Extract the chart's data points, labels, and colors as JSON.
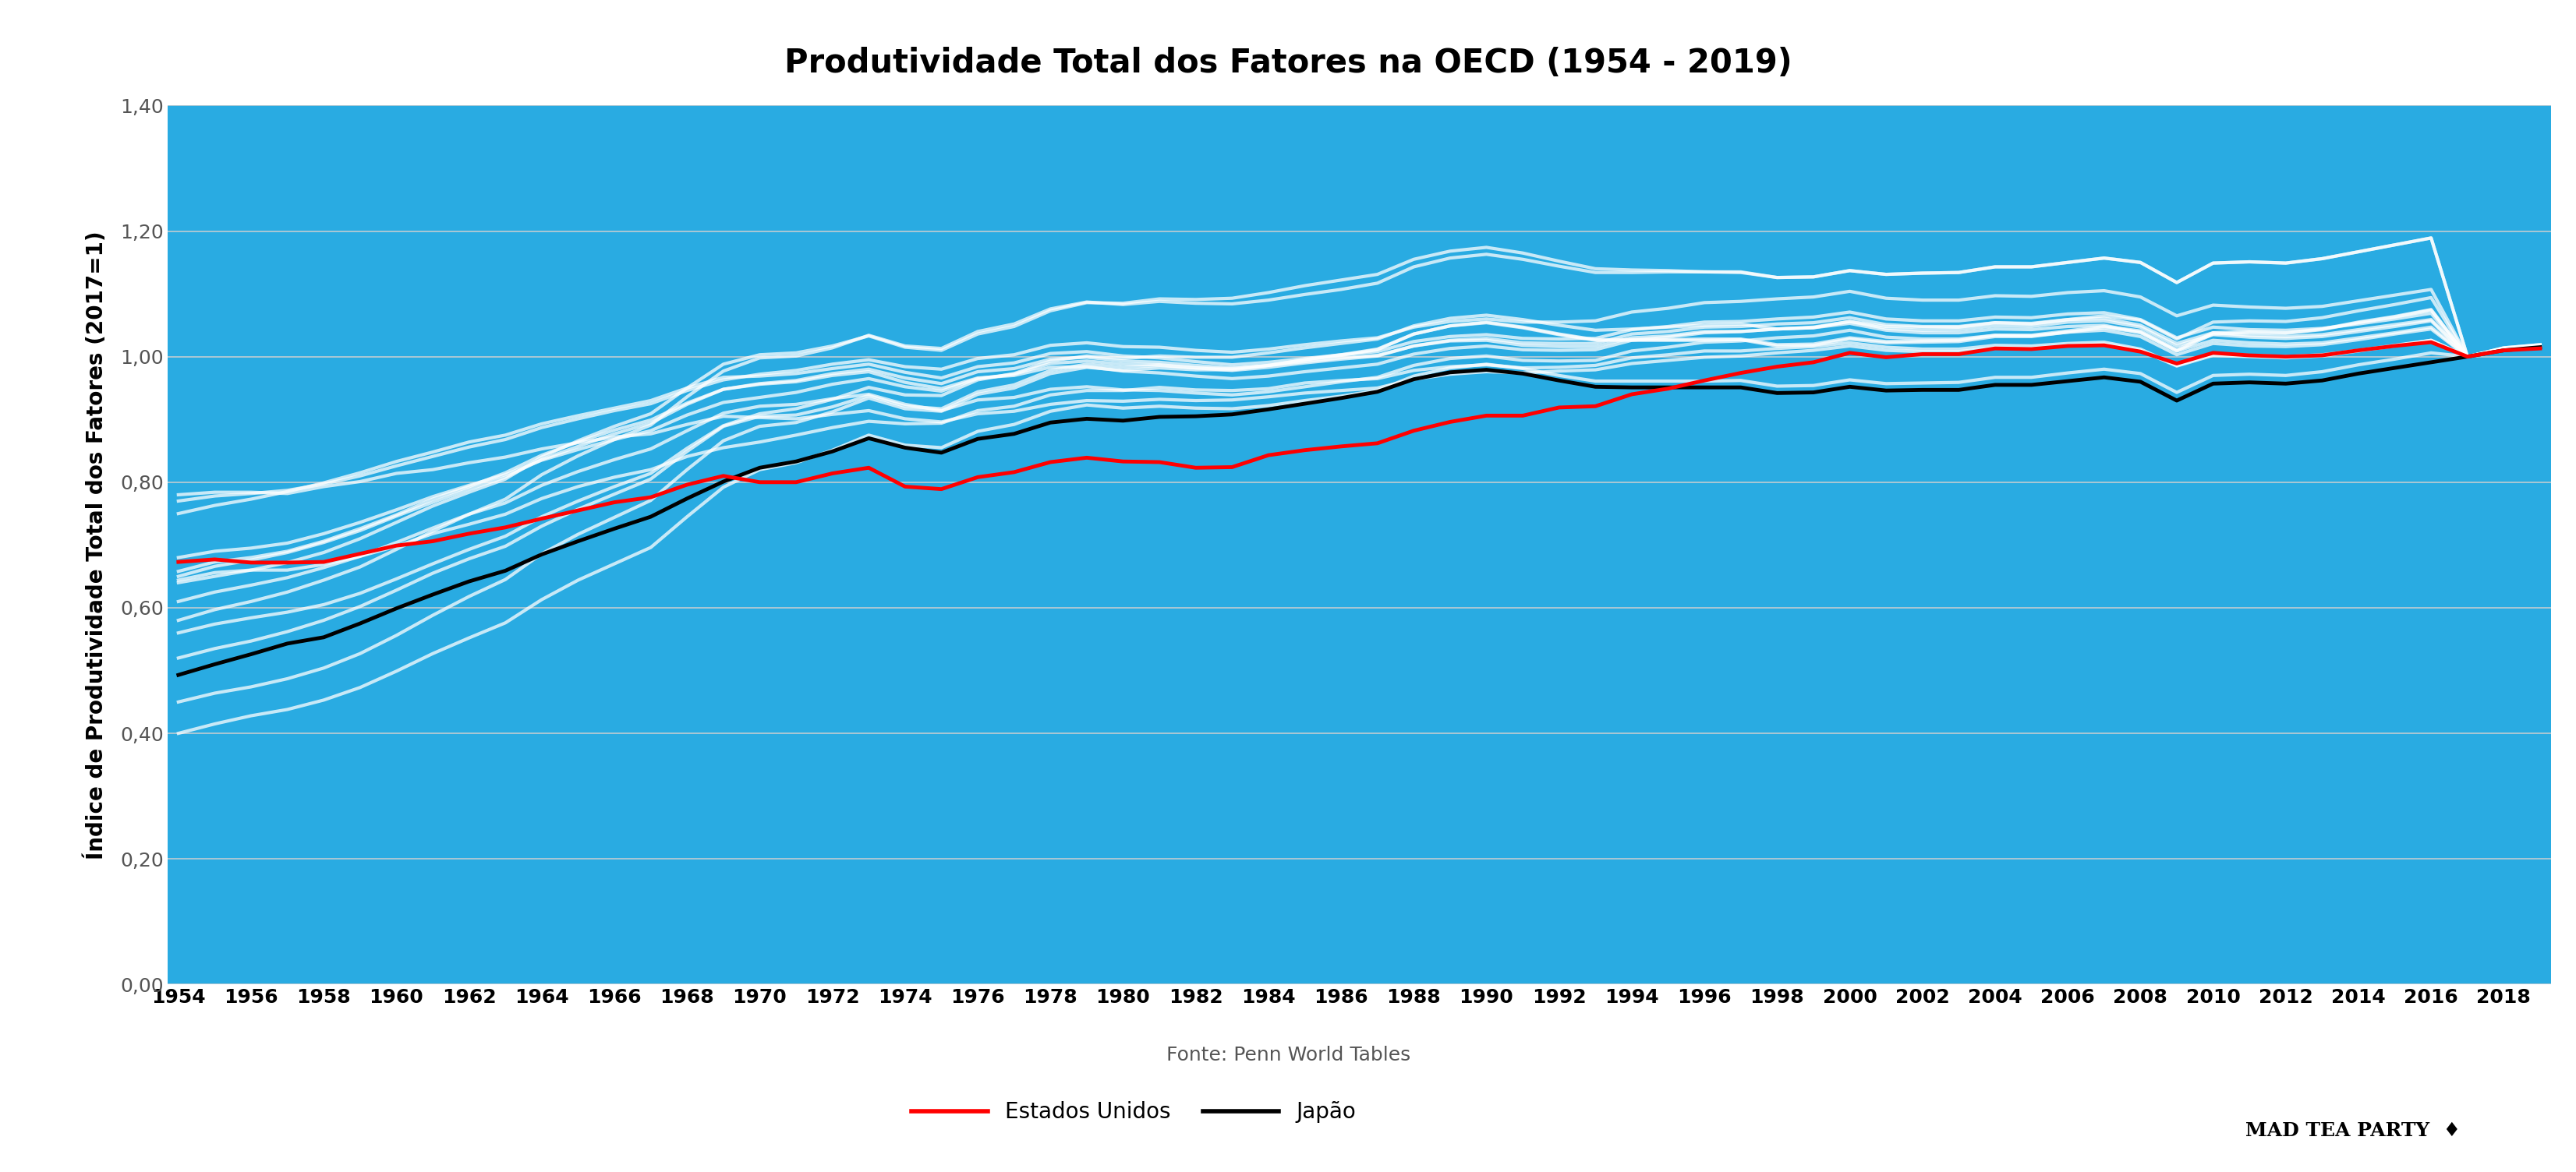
{
  "title": "Produtividade Total dos Fatores na OECD (1954 - 2019)",
  "ylabel": "Índice de Produtividade Total dos Fatores (2017=1)",
  "xlabel_source": "Fonte: Penn World Tables",
  "background_color": "#29ABE2",
  "fig_bg_color": "#FFFFFF",
  "years": [
    1954,
    1955,
    1956,
    1957,
    1958,
    1959,
    1960,
    1961,
    1962,
    1963,
    1964,
    1965,
    1966,
    1967,
    1968,
    1969,
    1970,
    1971,
    1972,
    1973,
    1974,
    1975,
    1976,
    1977,
    1978,
    1979,
    1980,
    1981,
    1982,
    1983,
    1984,
    1985,
    1986,
    1987,
    1988,
    1989,
    1990,
    1991,
    1992,
    1993,
    1994,
    1995,
    1996,
    1997,
    1998,
    1999,
    2000,
    2001,
    2002,
    2003,
    2004,
    2005,
    2006,
    2007,
    2008,
    2009,
    2010,
    2011,
    2012,
    2013,
    2014,
    2015,
    2016,
    2017,
    2018,
    2019
  ],
  "ylim": [
    0.0,
    1.4
  ],
  "yticks": [
    0.0,
    0.2,
    0.4,
    0.6,
    0.8,
    1.0,
    1.2,
    1.4
  ],
  "usa_color": "#FF0000",
  "japan_color": "#000000",
  "other_color": "#FFFFFF",
  "other_alpha": 0.75,
  "usa_linewidth": 3.5,
  "japan_linewidth": 3.5,
  "other_linewidth": 3.0,
  "legend_us": "Estados Unidos",
  "legend_japan": "Japão",
  "title_fontsize": 30,
  "axis_fontsize": 20,
  "tick_fontsize": 18,
  "source_fontsize": 18,
  "legend_fontsize": 20,
  "grid_color": "#D0D0D0",
  "tick_color": "#555555",
  "usa_data": [
    0.673,
    0.677,
    0.672,
    0.672,
    0.673,
    0.686,
    0.699,
    0.706,
    0.718,
    0.728,
    0.742,
    0.755,
    0.768,
    0.776,
    0.796,
    0.81,
    0.8,
    0.8,
    0.814,
    0.823,
    0.793,
    0.789,
    0.808,
    0.816,
    0.832,
    0.839,
    0.833,
    0.832,
    0.823,
    0.824,
    0.843,
    0.851,
    0.857,
    0.862,
    0.882,
    0.896,
    0.906,
    0.906,
    0.919,
    0.921,
    0.94,
    0.949,
    0.962,
    0.974,
    0.984,
    0.991,
    1.006,
    0.999,
    1.004,
    1.004,
    1.013,
    1.012,
    1.017,
    1.018,
    1.008,
    0.989,
    1.006,
    1.002,
    1.0,
    1.002,
    1.01,
    1.017,
    1.023,
    1.0,
    1.01,
    1.013
  ],
  "japan_data": [
    0.493,
    0.51,
    0.526,
    0.543,
    0.553,
    0.575,
    0.599,
    0.621,
    0.642,
    0.659,
    0.685,
    0.706,
    0.726,
    0.745,
    0.774,
    0.801,
    0.823,
    0.833,
    0.849,
    0.87,
    0.855,
    0.847,
    0.869,
    0.877,
    0.895,
    0.901,
    0.898,
    0.904,
    0.905,
    0.908,
    0.916,
    0.925,
    0.934,
    0.944,
    0.964,
    0.975,
    0.979,
    0.973,
    0.962,
    0.952,
    0.951,
    0.951,
    0.951,
    0.951,
    0.942,
    0.943,
    0.952,
    0.946,
    0.947,
    0.947,
    0.955,
    0.955,
    0.961,
    0.967,
    0.96,
    0.93,
    0.957,
    0.959,
    0.957,
    0.962,
    0.973,
    0.982,
    0.991,
    1.0,
    1.01,
    1.015
  ],
  "other_countries": [
    [
      0.644,
      0.656,
      0.66,
      0.66,
      0.669,
      0.682,
      0.698,
      0.718,
      0.733,
      0.749,
      0.774,
      0.793,
      0.808,
      0.82,
      0.841,
      0.855,
      0.864,
      0.875,
      0.887,
      0.897,
      0.893,
      0.894,
      0.914,
      0.921,
      0.939,
      0.946,
      0.946,
      0.951,
      0.947,
      0.946,
      0.949,
      0.958,
      0.962,
      0.965,
      0.978,
      0.984,
      0.987,
      0.982,
      0.983,
      0.986,
      0.998,
      1.003,
      1.009,
      1.009,
      1.013,
      1.016,
      1.022,
      1.015,
      1.012,
      1.012,
      1.018,
      1.017,
      1.021,
      1.023,
      1.012,
      0.986,
      1.004,
      1.002,
      1.0,
      1.003,
      1.01,
      1.018,
      1.026,
      1.0,
      1.01,
      1.014
    ],
    [
      0.658,
      0.673,
      0.68,
      0.69,
      0.706,
      0.726,
      0.748,
      0.773,
      0.793,
      0.815,
      0.843,
      0.864,
      0.883,
      0.899,
      0.926,
      0.948,
      0.957,
      0.962,
      0.973,
      0.98,
      0.966,
      0.957,
      0.976,
      0.981,
      0.996,
      0.999,
      0.993,
      0.991,
      0.986,
      0.982,
      0.986,
      0.992,
      0.998,
      1.002,
      1.017,
      1.025,
      1.026,
      1.018,
      1.016,
      1.016,
      1.03,
      1.033,
      1.04,
      1.04,
      1.044,
      1.046,
      1.053,
      1.042,
      1.038,
      1.038,
      1.044,
      1.043,
      1.048,
      1.05,
      1.038,
      1.009,
      1.026,
      1.022,
      1.02,
      1.022,
      1.03,
      1.038,
      1.047,
      1.0,
      1.01,
      1.015
    ],
    [
      0.78,
      0.784,
      0.784,
      0.782,
      0.793,
      0.801,
      0.814,
      0.82,
      0.831,
      0.84,
      0.853,
      0.863,
      0.872,
      0.877,
      0.892,
      0.905,
      0.903,
      0.901,
      0.908,
      0.914,
      0.901,
      0.896,
      0.909,
      0.913,
      0.924,
      0.93,
      0.929,
      0.932,
      0.93,
      0.931,
      0.936,
      0.942,
      0.946,
      0.95,
      0.964,
      0.972,
      0.976,
      0.974,
      0.977,
      0.979,
      0.989,
      0.994,
      0.999,
      1.001,
      1.006,
      1.01,
      1.017,
      1.01,
      1.008,
      1.008,
      1.014,
      1.013,
      1.018,
      1.02,
      1.01,
      0.985,
      1.002,
      1.0,
      0.998,
      1.001,
      1.009,
      1.017,
      1.026,
      1.0,
      1.01,
      1.014
    ],
    [
      0.75,
      0.763,
      0.773,
      0.785,
      0.799,
      0.815,
      0.833,
      0.848,
      0.864,
      0.875,
      0.893,
      0.906,
      0.918,
      0.93,
      0.95,
      0.967,
      0.969,
      0.973,
      0.981,
      0.988,
      0.975,
      0.966,
      0.984,
      0.99,
      1.005,
      1.008,
      1.001,
      0.998,
      0.992,
      0.987,
      0.991,
      0.997,
      1.003,
      1.008,
      1.024,
      1.032,
      1.035,
      1.029,
      1.028,
      1.029,
      1.043,
      1.048,
      1.055,
      1.056,
      1.06,
      1.063,
      1.071,
      1.06,
      1.057,
      1.057,
      1.063,
      1.062,
      1.068,
      1.07,
      1.059,
      1.03,
      1.047,
      1.043,
      1.042,
      1.045,
      1.052,
      1.06,
      1.069,
      1.0,
      1.01,
      1.015
    ],
    [
      0.68,
      0.69,
      0.695,
      0.703,
      0.718,
      0.736,
      0.756,
      0.777,
      0.795,
      0.812,
      0.835,
      0.852,
      0.868,
      0.882,
      0.907,
      0.927,
      0.935,
      0.943,
      0.956,
      0.965,
      0.952,
      0.945,
      0.965,
      0.972,
      0.989,
      0.993,
      0.988,
      0.987,
      0.982,
      0.978,
      0.983,
      0.99,
      0.996,
      1.001,
      1.017,
      1.026,
      1.029,
      1.022,
      1.021,
      1.021,
      1.036,
      1.04,
      1.047,
      1.048,
      1.052,
      1.054,
      1.062,
      1.051,
      1.048,
      1.048,
      1.054,
      1.053,
      1.059,
      1.061,
      1.05,
      1.021,
      1.038,
      1.034,
      1.032,
      1.035,
      1.043,
      1.051,
      1.059,
      1.0,
      1.01,
      1.015
    ],
    [
      0.4,
      0.415,
      0.428,
      0.438,
      0.453,
      0.473,
      0.499,
      0.527,
      0.552,
      0.576,
      0.613,
      0.644,
      0.67,
      0.696,
      0.745,
      0.792,
      0.82,
      0.831,
      0.851,
      0.875,
      0.859,
      0.855,
      0.881,
      0.892,
      0.913,
      0.923,
      0.918,
      0.921,
      0.918,
      0.917,
      0.922,
      0.93,
      0.937,
      0.946,
      0.969,
      0.982,
      0.988,
      0.981,
      0.97,
      0.961,
      0.961,
      0.961,
      0.961,
      0.962,
      0.953,
      0.954,
      0.963,
      0.957,
      0.958,
      0.959,
      0.967,
      0.967,
      0.974,
      0.98,
      0.973,
      0.943,
      0.97,
      0.972,
      0.97,
      0.976,
      0.987,
      0.996,
      1.006,
      1.0,
      1.012,
      1.017
    ],
    [
      0.65,
      0.666,
      0.676,
      0.688,
      0.704,
      0.723,
      0.746,
      0.768,
      0.789,
      0.808,
      0.836,
      0.857,
      0.877,
      0.894,
      0.924,
      0.948,
      0.956,
      0.96,
      0.97,
      0.976,
      0.959,
      0.949,
      0.966,
      0.97,
      0.983,
      0.984,
      0.977,
      0.974,
      0.969,
      0.965,
      0.969,
      0.976,
      0.982,
      0.988,
      1.004,
      1.013,
      1.017,
      1.011,
      1.01,
      1.011,
      1.026,
      1.031,
      1.038,
      1.04,
      1.044,
      1.047,
      1.056,
      1.045,
      1.042,
      1.043,
      1.049,
      1.048,
      1.055,
      1.057,
      1.047,
      1.017,
      1.035,
      1.031,
      1.029,
      1.032,
      1.04,
      1.048,
      1.057,
      1.0,
      1.011,
      1.016
    ],
    [
      0.45,
      0.464,
      0.474,
      0.487,
      0.504,
      0.527,
      0.556,
      0.588,
      0.618,
      0.645,
      0.686,
      0.717,
      0.744,
      0.771,
      0.82,
      0.866,
      0.889,
      0.895,
      0.912,
      0.934,
      0.917,
      0.913,
      0.94,
      0.95,
      0.973,
      0.983,
      0.978,
      0.982,
      0.979,
      0.979,
      0.986,
      0.995,
      1.003,
      1.012,
      1.036,
      1.049,
      1.055,
      1.047,
      1.036,
      1.027,
      1.027,
      1.027,
      1.028,
      1.028,
      1.019,
      1.02,
      1.03,
      1.024,
      1.025,
      1.026,
      1.034,
      1.034,
      1.041,
      1.048,
      1.041,
      1.011,
      1.038,
      1.04,
      1.038,
      1.044,
      1.055,
      1.064,
      1.075,
      1.0,
      1.013,
      1.018
    ],
    [
      0.52,
      0.535,
      0.547,
      0.562,
      0.58,
      0.602,
      0.628,
      0.655,
      0.678,
      0.698,
      0.73,
      0.757,
      0.781,
      0.805,
      0.849,
      0.889,
      0.905,
      0.907,
      0.92,
      0.938,
      0.921,
      0.917,
      0.944,
      0.955,
      0.978,
      0.988,
      0.983,
      0.986,
      0.982,
      0.981,
      0.986,
      0.995,
      1.002,
      1.011,
      1.036,
      1.049,
      1.054,
      1.046,
      1.035,
      1.026,
      1.026,
      1.026,
      1.026,
      1.027,
      1.017,
      1.018,
      1.028,
      1.022,
      1.023,
      1.024,
      1.032,
      1.032,
      1.039,
      1.046,
      1.039,
      1.009,
      1.036,
      1.038,
      1.037,
      1.043,
      1.054,
      1.063,
      1.074,
      1.0,
      1.013,
      1.018
    ],
    [
      0.56,
      0.574,
      0.584,
      0.593,
      0.605,
      0.623,
      0.646,
      0.67,
      0.693,
      0.714,
      0.745,
      0.77,
      0.793,
      0.814,
      0.854,
      0.89,
      0.909,
      0.917,
      0.932,
      0.951,
      0.939,
      0.938,
      0.963,
      0.973,
      0.993,
      1.001,
      0.997,
      1.001,
      0.999,
      0.999,
      1.006,
      1.014,
      1.021,
      1.028,
      1.049,
      1.061,
      1.066,
      1.059,
      1.05,
      1.042,
      1.044,
      1.047,
      1.05,
      1.052,
      1.044,
      1.046,
      1.056,
      1.048,
      1.047,
      1.047,
      1.054,
      1.052,
      1.059,
      1.065,
      1.058,
      1.028,
      1.055,
      1.057,
      1.056,
      1.062,
      1.073,
      1.083,
      1.094,
      1.0,
      1.013,
      1.018
    ],
    [
      0.61,
      0.625,
      0.636,
      0.648,
      0.664,
      0.682,
      0.704,
      0.727,
      0.749,
      0.767,
      0.795,
      0.817,
      0.836,
      0.853,
      0.882,
      0.91,
      0.921,
      0.924,
      0.933,
      0.94,
      0.924,
      0.914,
      0.931,
      0.935,
      0.948,
      0.952,
      0.947,
      0.946,
      0.942,
      0.939,
      0.944,
      0.952,
      0.96,
      0.967,
      0.986,
      0.997,
      1.001,
      0.994,
      0.993,
      0.994,
      1.009,
      1.015,
      1.023,
      1.025,
      1.03,
      1.033,
      1.042,
      1.031,
      1.028,
      1.028,
      1.034,
      1.033,
      1.039,
      1.042,
      1.032,
      1.003,
      1.021,
      1.017,
      1.016,
      1.019,
      1.027,
      1.036,
      1.044,
      1.0,
      1.011,
      1.016
    ],
    [
      0.77,
      0.778,
      0.782,
      0.787,
      0.797,
      0.81,
      0.826,
      0.841,
      0.856,
      0.868,
      0.887,
      0.901,
      0.914,
      0.925,
      0.946,
      0.963,
      0.972,
      0.978,
      0.988,
      0.995,
      0.984,
      0.98,
      0.997,
      1.003,
      1.018,
      1.022,
      1.016,
      1.015,
      1.01,
      1.007,
      1.012,
      1.019,
      1.025,
      1.03,
      1.047,
      1.056,
      1.06,
      1.055,
      1.055,
      1.057,
      1.071,
      1.077,
      1.086,
      1.088,
      1.092,
      1.095,
      1.104,
      1.093,
      1.09,
      1.09,
      1.097,
      1.096,
      1.102,
      1.105,
      1.095,
      1.065,
      1.082,
      1.079,
      1.077,
      1.08,
      1.089,
      1.098,
      1.107,
      1.0,
      1.011,
      1.016
    ],
    [
      0.64,
      0.65,
      0.66,
      0.672,
      0.688,
      0.71,
      0.736,
      0.762,
      0.784,
      0.805,
      0.84,
      0.866,
      0.889,
      0.909,
      0.95,
      0.988,
      1.003,
      1.006,
      1.017,
      1.033,
      1.015,
      1.01,
      1.036,
      1.048,
      1.073,
      1.086,
      1.085,
      1.092,
      1.091,
      1.093,
      1.102,
      1.113,
      1.122,
      1.131,
      1.155,
      1.168,
      1.174,
      1.165,
      1.152,
      1.14,
      1.138,
      1.137,
      1.135,
      1.134,
      1.126,
      1.127,
      1.137,
      1.131,
      1.133,
      1.134,
      1.143,
      1.143,
      1.15,
      1.157,
      1.15,
      1.118,
      1.149,
      1.151,
      1.149,
      1.156,
      1.167,
      1.178,
      1.189,
      1.0,
      1.014,
      1.019
    ],
    [
      0.58,
      0.597,
      0.61,
      0.625,
      0.644,
      0.665,
      0.693,
      0.722,
      0.749,
      0.773,
      0.812,
      0.842,
      0.868,
      0.891,
      0.936,
      0.977,
      0.998,
      1.001,
      1.014,
      1.034,
      1.017,
      1.013,
      1.04,
      1.052,
      1.076,
      1.087,
      1.083,
      1.088,
      1.085,
      1.084,
      1.09,
      1.099,
      1.107,
      1.117,
      1.143,
      1.157,
      1.163,
      1.155,
      1.144,
      1.134,
      1.134,
      1.135,
      1.135,
      1.135,
      1.126,
      1.127,
      1.137,
      1.131,
      1.133,
      1.134,
      1.143,
      1.143,
      1.15,
      1.157,
      1.15,
      1.118,
      1.149,
      1.151,
      1.149,
      1.156,
      1.167,
      1.178,
      1.189,
      1.0,
      1.014,
      1.019
    ]
  ]
}
